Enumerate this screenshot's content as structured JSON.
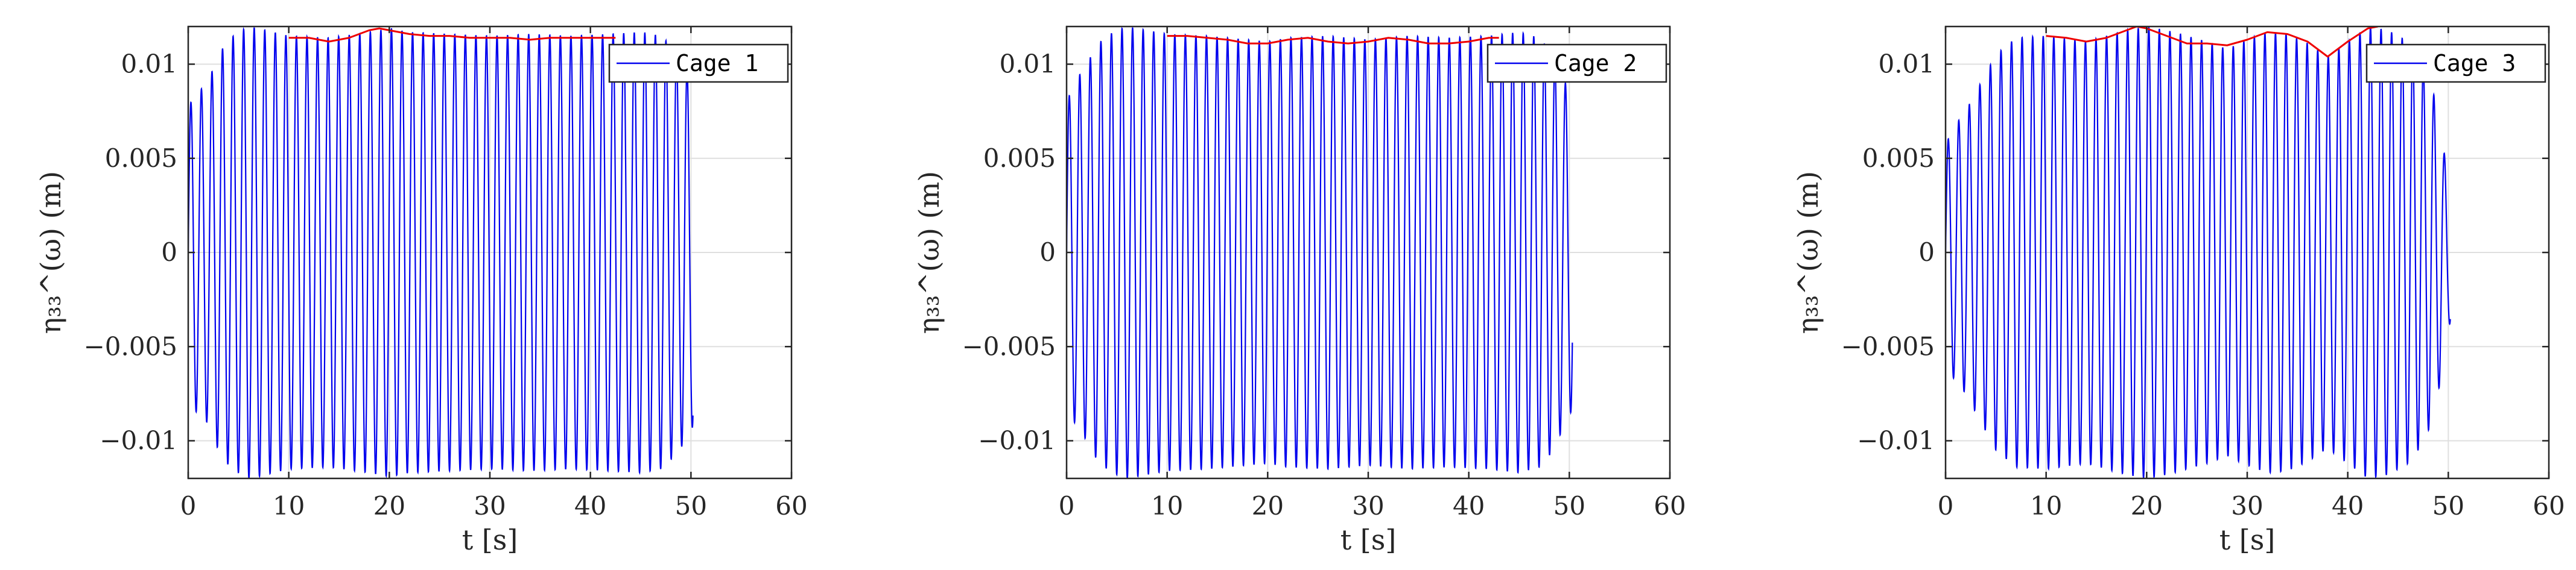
{
  "figure": {
    "panels": [
      {
        "id": "cage-1",
        "legend_label": "Cage 1",
        "xlabel": "t [s]",
        "ylabel": "η₃₃^(ω) (m)"
      },
      {
        "id": "cage-2",
        "legend_label": "Cage 2",
        "xlabel": "t [s]",
        "ylabel": "η₃₃^(ω) (m)"
      },
      {
        "id": "cage-3",
        "legend_label": "Cage 3",
        "xlabel": "t [s]",
        "ylabel": "η₃₃^(ω) (m)"
      }
    ]
  },
  "colors": {
    "series": "#0000ee",
    "envelope": "#ee0000",
    "axis": "#262626",
    "grid": "#dfdfdf"
  },
  "chart_data": [
    {
      "type": "line",
      "xlabel": "t [s]",
      "ylabel": "η₃₃^(ω) (m)",
      "xlim": [
        0,
        60
      ],
      "ylim": [
        -0.012,
        0.012
      ],
      "xticks": [
        0,
        10,
        20,
        30,
        40,
        50,
        60
      ],
      "xtick_labels": [
        "0",
        "10",
        "20",
        "30",
        "40",
        "50",
        "60"
      ],
      "yticks": [
        -0.01,
        -0.005,
        0,
        0.005,
        0.01
      ],
      "ytick_labels": [
        "−0.01",
        "−0.005",
        "0",
        "0.005",
        "0.01"
      ],
      "grid": true,
      "legend_position": "top-right",
      "oscillation_period_s": 1.05,
      "series": [
        {
          "name": "Cage 1",
          "color": "#0000ee",
          "duration_s": 50.2,
          "amplitude_envelope": {
            "t": [
              0,
              0.5,
              1,
              2,
              3,
              4,
              5,
              6,
              7,
              10,
              14,
              18,
              20,
              22,
              26,
              30,
              34,
              38,
              42,
              45,
              47,
              48,
              49,
              50
            ],
            "a": [
              0.0075,
              0.0084,
              0.0085,
              0.0091,
              0.0105,
              0.0113,
              0.0117,
              0.012,
              0.0119,
              0.0115,
              0.0114,
              0.0117,
              0.0119,
              0.0117,
              0.0116,
              0.0115,
              0.0116,
              0.0115,
              0.0116,
              0.0117,
              0.0115,
              0.011,
              0.0104,
              0.0093
            ]
          }
        }
      ],
      "envelope_line": {
        "color": "#ee0000",
        "t": [
          10,
          12,
          14,
          16,
          18,
          19,
          20,
          22,
          24,
          26,
          28,
          30,
          32,
          34,
          36,
          38,
          40,
          42.5
        ],
        "y": [
          0.0114,
          0.0114,
          0.0112,
          0.0114,
          0.0118,
          0.0119,
          0.0118,
          0.0116,
          0.0115,
          0.0115,
          0.0114,
          0.0114,
          0.0114,
          0.0113,
          0.0114,
          0.0114,
          0.0114,
          0.0114
        ]
      }
    },
    {
      "type": "line",
      "xlabel": "t [s]",
      "ylabel": "η₃₃^(ω) (m)",
      "xlim": [
        0,
        60
      ],
      "ylim": [
        -0.012,
        0.012
      ],
      "xticks": [
        0,
        10,
        20,
        30,
        40,
        50,
        60
      ],
      "xtick_labels": [
        "0",
        "10",
        "20",
        "30",
        "40",
        "50",
        "60"
      ],
      "yticks": [
        -0.01,
        -0.005,
        0,
        0.005,
        0.01
      ],
      "ytick_labels": [
        "−0.01",
        "−0.005",
        "0",
        "0.005",
        "0.01"
      ],
      "grid": true,
      "legend_position": "top-right",
      "oscillation_period_s": 1.05,
      "series": [
        {
          "name": "Cage 2",
          "color": "#0000ee",
          "duration_s": 50.3,
          "amplitude_envelope": {
            "t": [
              0,
              0.5,
              1,
              2,
              3,
              4,
              5,
              6,
              7,
              10,
              14,
              18,
              20,
              22,
              26,
              30,
              34,
              38,
              42,
              45,
              47,
              48,
              49,
              50
            ],
            "a": [
              0.0078,
              0.0088,
              0.0092,
              0.01,
              0.011,
              0.0115,
              0.0118,
              0.012,
              0.0119,
              0.0116,
              0.0115,
              0.0113,
              0.0112,
              0.0114,
              0.0115,
              0.0113,
              0.0115,
              0.0114,
              0.0115,
              0.0117,
              0.0114,
              0.0108,
              0.0098,
              0.0085
            ]
          }
        }
      ],
      "envelope_line": {
        "color": "#ee0000",
        "t": [
          10,
          12,
          14,
          16,
          18,
          20,
          22,
          24,
          26,
          28,
          30,
          32,
          34,
          36,
          38,
          40,
          42,
          43
        ],
        "y": [
          0.0115,
          0.0115,
          0.0114,
          0.0113,
          0.0111,
          0.0111,
          0.0113,
          0.0114,
          0.0112,
          0.0111,
          0.0112,
          0.0114,
          0.0113,
          0.0111,
          0.0111,
          0.0112,
          0.0114,
          0.0114
        ]
      }
    },
    {
      "type": "line",
      "xlabel": "t [s]",
      "ylabel": "η₃₃^(ω) (m)",
      "xlim": [
        0,
        60
      ],
      "ylim": [
        -0.012,
        0.012
      ],
      "xticks": [
        0,
        10,
        20,
        30,
        40,
        50,
        60
      ],
      "xtick_labels": [
        "0",
        "10",
        "20",
        "30",
        "40",
        "50",
        "60"
      ],
      "yticks": [
        -0.01,
        -0.005,
        0,
        0.005,
        0.01
      ],
      "ytick_labels": [
        "−0.01",
        "−0.005",
        "0",
        "0.005",
        "0.01"
      ],
      "grid": true,
      "legend_position": "top-right",
      "oscillation_period_s": 1.05,
      "series": [
        {
          "name": "Cage 3",
          "color": "#0000ee",
          "duration_s": 50.2,
          "amplitude_envelope": {
            "t": [
              0,
              0.5,
              1,
              2,
              3,
              4,
              5,
              7,
              10,
              14,
              18,
              20,
              22,
              26,
              28,
              30,
              32,
              34,
              36,
              38,
              40,
              42,
              44,
              46,
              47,
              48,
              49,
              50
            ],
            "a": [
              0.0055,
              0.0065,
              0.0068,
              0.0075,
              0.0085,
              0.0095,
              0.0105,
              0.0114,
              0.0115,
              0.0112,
              0.0118,
              0.012,
              0.0118,
              0.0112,
              0.0108,
              0.0113,
              0.0117,
              0.0116,
              0.0111,
              0.0104,
              0.0112,
              0.012,
              0.0118,
              0.0112,
              0.0105,
              0.0095,
              0.0075,
              0.0038
            ]
          }
        }
      ],
      "envelope_line": {
        "color": "#ee0000",
        "t": [
          10,
          12,
          14,
          16,
          18,
          19,
          20,
          22,
          24,
          26,
          28,
          30,
          32,
          34,
          36,
          38,
          40,
          42,
          43
        ],
        "y": [
          0.0115,
          0.0114,
          0.0112,
          0.0114,
          0.0118,
          0.012,
          0.0119,
          0.0115,
          0.0111,
          0.0111,
          0.011,
          0.0113,
          0.0117,
          0.0116,
          0.0112,
          0.0104,
          0.0112,
          0.0119,
          0.012
        ]
      }
    }
  ]
}
